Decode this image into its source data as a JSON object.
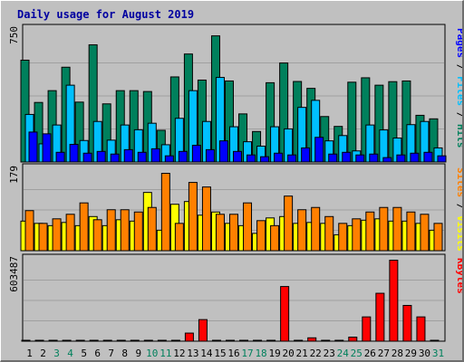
{
  "chart_data": {
    "title": "Daily usage for August 2019",
    "days": [
      "1",
      "2",
      "3",
      "4",
      "5",
      "6",
      "7",
      "8",
      "9",
      "10",
      "11",
      "12",
      "13",
      "14",
      "15",
      "16",
      "17",
      "18",
      "19",
      "20",
      "21",
      "22",
      "23",
      "24",
      "25",
      "26",
      "27",
      "28",
      "29",
      "30",
      "31"
    ],
    "weekend_days": [
      "3",
      "4",
      "10",
      "11",
      "17",
      "18",
      "24",
      "25",
      "31"
    ],
    "colors": {
      "hits": "#00805c",
      "files": "#00c0ff",
      "pages": "#0000ff",
      "visits": "#ffff00",
      "sites": "#ff8000",
      "kbytes": "#ff0000",
      "weekday_label": "#000000",
      "weekend_label": "#00805c"
    },
    "panels": [
      {
        "type": "bar",
        "name": "hits-files-pages",
        "scale_label": "750",
        "ymax": 750,
        "legend": [
          {
            "text": "Hits",
            "color": "#00805c"
          },
          {
            "text": "Files",
            "color": "#00c0ff"
          },
          {
            "text": "Pages",
            "color": "#0000ff"
          }
        ],
        "series": [
          {
            "name": "Hits",
            "values": [
              578,
              338,
              405,
              538,
              340,
              665,
              330,
              405,
              405,
              400,
              180,
              483,
              613,
              465,
              716,
              460,
              273,
              173,
              450,
              562,
              457,
              418,
              258,
              202,
              453,
              478,
              436,
              456,
              460,
              265,
              245
            ]
          },
          {
            "name": "Files",
            "values": [
              270,
              103,
              210,
              436,
              122,
              230,
              124,
              210,
              183,
              220,
              98,
              248,
              405,
              230,
              480,
              200,
              115,
              90,
              200,
              188,
              310,
              350,
              120,
              150,
              63,
              210,
              182,
              136,
              212,
              230,
              80
            ]
          },
          {
            "name": "Pages",
            "values": [
              170,
              160,
              55,
              100,
              50,
              60,
              45,
              70,
              55,
              75,
              35,
              60,
              95,
              70,
              120,
              60,
              40,
              30,
              50,
              40,
              80,
              140,
              45,
              55,
              40,
              45,
              25,
              40,
              50,
              55,
              35
            ]
          }
        ]
      },
      {
        "type": "bar",
        "name": "visits-sites",
        "scale_label": "179",
        "ymax": 179,
        "legend": [
          {
            "text": "Visits",
            "color": "#ffff00"
          },
          {
            "text": "Sites",
            "color": "#ff8000"
          }
        ],
        "series": [
          {
            "name": "Visits",
            "values": [
              65,
              60,
              55,
              62,
              55,
              75,
              55,
              68,
              65,
              128,
              45,
              102,
              108,
              78,
              85,
              60,
              55,
              38,
              72,
              75,
              60,
              62,
              60,
              35,
              55,
              67,
              70,
              65,
              65,
              60,
              45
            ]
          },
          {
            "name": "Sites",
            "values": [
              88,
              60,
              70,
              80,
              105,
              68,
              90,
              90,
              85,
              95,
              170,
              60,
              150,
              140,
              80,
              80,
              105,
              66,
              55,
              120,
              90,
              95,
              75,
              60,
              70,
              85,
              95,
              95,
              85,
              80,
              60
            ]
          }
        ]
      },
      {
        "type": "bar",
        "name": "kbytes",
        "scale_label": "603487",
        "ymax": 603487,
        "legend": [
          {
            "text": "KBytes",
            "color": "#ff0000"
          }
        ],
        "series": [
          {
            "name": "KBytes",
            "values": [
              5000,
              5000,
              5000,
              5000,
              5000,
              5000,
              5000,
              5000,
              5000,
              5000,
              5000,
              5000,
              60000,
              160000,
              5000,
              5000,
              5000,
              5000,
              5000,
              405000,
              5000,
              25000,
              5000,
              5000,
              30000,
              180000,
              355000,
              600000,
              265000,
              180000,
              5000
            ]
          }
        ]
      }
    ]
  }
}
